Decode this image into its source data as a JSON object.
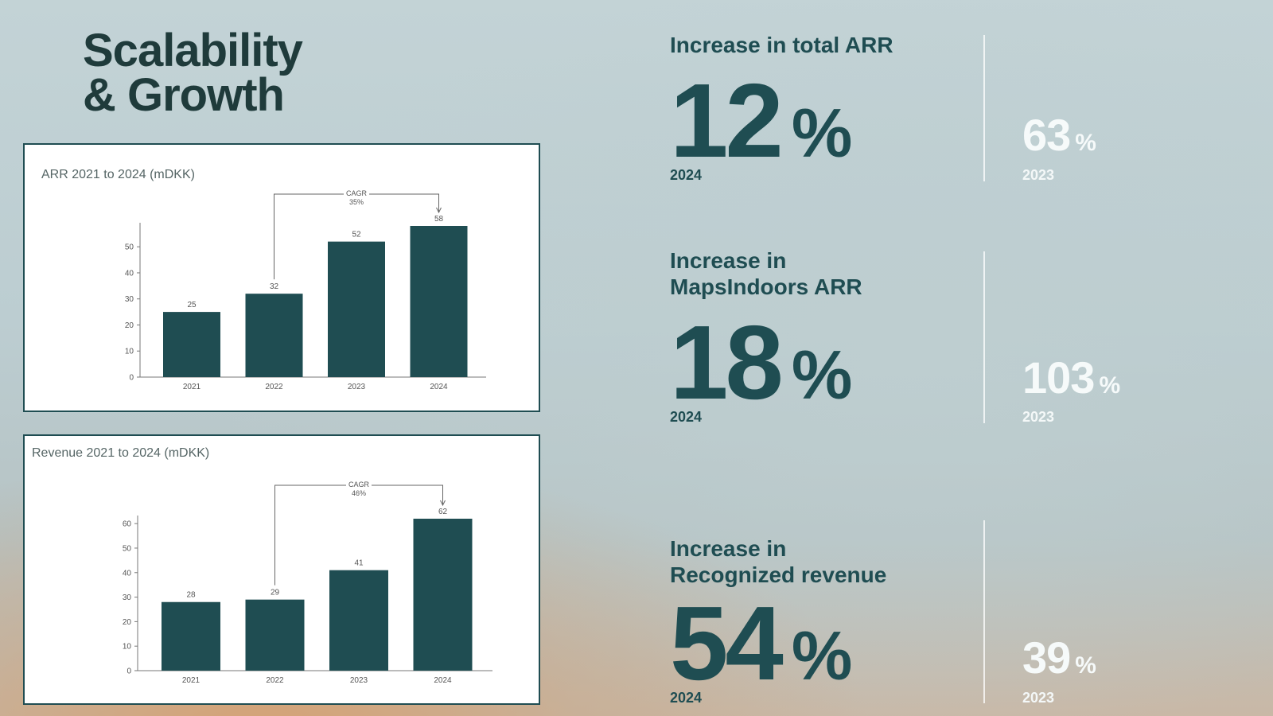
{
  "title": {
    "line1": "Scalability",
    "line2": "& Growth"
  },
  "metrics": [
    {
      "heading": [
        "Increase in total ARR"
      ],
      "value": "12",
      "unit": "%",
      "year": "2024",
      "prev_value": "63",
      "prev_unit": "%",
      "prev_year": "2023"
    },
    {
      "heading": [
        "Increase in",
        "MapsIndoors ARR"
      ],
      "value": "18",
      "unit": "%",
      "year": "2024",
      "prev_value": "103",
      "prev_unit": "%",
      "prev_year": "2023"
    },
    {
      "heading": [
        "Increase in",
        "Recognized revenue"
      ],
      "value": "54",
      "unit": "%",
      "year": "2024",
      "prev_value": "39",
      "prev_unit": "%",
      "prev_year": "2023"
    }
  ],
  "colors": {
    "bar": "#1f4d52",
    "text_dark": "#1f3b3b",
    "accent": "#1f4d52",
    "light": "#f6fafa"
  },
  "chart_data": [
    {
      "type": "bar",
      "title": "ARR 2021 to 2024 (mDKK)",
      "categories": [
        "2021",
        "2022",
        "2023",
        "2024"
      ],
      "values": [
        25,
        32,
        52,
        58
      ],
      "yticks": [
        0,
        10,
        20,
        30,
        40,
        50
      ],
      "ylim": [
        0,
        58
      ],
      "xlabel": "",
      "ylabel": "",
      "annotation": {
        "label": "CAGR",
        "value": "35%",
        "from": "2022",
        "to": "2024"
      }
    },
    {
      "type": "bar",
      "title": "Revenue 2021 to 2024 (mDKK)",
      "categories": [
        "2021",
        "2022",
        "2023",
        "2024"
      ],
      "values": [
        28,
        29,
        41,
        62
      ],
      "yticks": [
        0,
        10,
        20,
        30,
        40,
        50,
        60
      ],
      "ylim": [
        0,
        62
      ],
      "xlabel": "",
      "ylabel": "",
      "annotation": {
        "label": "CAGR",
        "value": "46%",
        "from": "2022",
        "to": "2024"
      }
    }
  ]
}
